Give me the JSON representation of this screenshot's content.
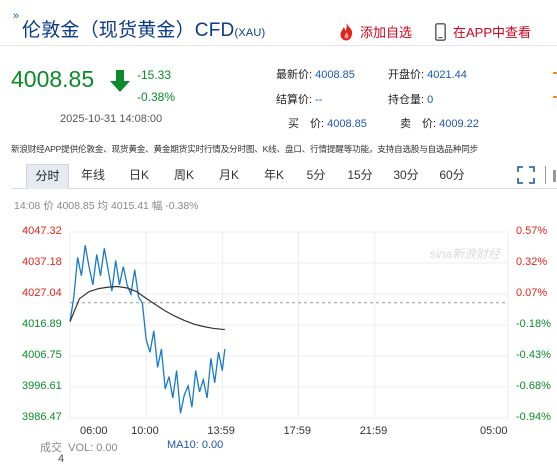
{
  "header": {
    "arrow_mark": "»",
    "title": "伦敦金（现货黄金）CFD",
    "symbol": "(XAU)",
    "add_favorite": "添加自选",
    "open_in_app": "在APP中查看"
  },
  "quote": {
    "price": "4008.85",
    "change": "-15.33",
    "change_pct": "-0.38%",
    "timestamp": "2025-10-31 14:08:00",
    "fields": {
      "latest_label": "最新价:",
      "latest_value": "4008.85",
      "open_label": "开盘价:",
      "open_value": "4021.44",
      "settle_label": "结算价:",
      "settle_value": "--",
      "oi_label": "持仓量:",
      "oi_value": "0",
      "bid_label": "买　价:",
      "bid_value": "4008.85",
      "ask_label": "卖　价:",
      "ask_value": "4009.22"
    }
  },
  "notice": "新浪财经APP提供伦敦金、现货黄金、黄金期货实时行情及分时图、K线、盘口、行情提醒等功能，支持自选股与自选品种同步",
  "tabs": [
    "分时",
    "年线",
    "日K",
    "周K",
    "月K",
    "年K",
    "5分",
    "15分",
    "30分",
    "60分"
  ],
  "active_tab": "分时",
  "info_line": {
    "time": "14:08",
    "price_label": "价",
    "price": "4008.85",
    "avg_label": "均",
    "avg": "4015.41",
    "change_label": "幅",
    "change": "-0.38%"
  },
  "chart_data": {
    "type": "line",
    "y_left_ticks": [
      "4047.32",
      "4037.18",
      "4027.04",
      "4016.89",
      "4006.75",
      "3996.61",
      "3986.47"
    ],
    "y_right_ticks": [
      "0.57%",
      "0.32%",
      "0.07%",
      "-0.18%",
      "-0.43%",
      "-0.68%",
      "-0.94%"
    ],
    "ylim": [
      3986.47,
      4047.32
    ],
    "x_ticks": [
      "06:00",
      "10:00",
      "13:59",
      "17:59",
      "21:59",
      "05:00"
    ],
    "prev_close": 4024.18,
    "watermark": "sina新浪财经",
    "series": [
      {
        "x": [
          6.0,
          6.2,
          6.4,
          6.6,
          6.8,
          7.0,
          7.2,
          7.4,
          7.6,
          7.8,
          8.0,
          8.2,
          8.4,
          8.6,
          8.8,
          9.0,
          9.2,
          9.4,
          9.6,
          9.8,
          10.0,
          10.2,
          10.4,
          10.6,
          10.8,
          11.0,
          11.2,
          11.4,
          11.6,
          11.8,
          12.0,
          12.2,
          12.4,
          12.6,
          12.8,
          13.0,
          13.2,
          13.4,
          13.6,
          13.8,
          14.0,
          14.13
        ],
        "y": [
          4018.0,
          4026.0,
          4039.0,
          4033.0,
          4043.0,
          4036.0,
          4030.0,
          4040.0,
          4033.0,
          4042.0,
          4035.0,
          4028.0,
          4038.0,
          4030.0,
          4036.0,
          4030.0,
          4027.0,
          4035.0,
          4026.0,
          4024.0,
          4012.0,
          4008.0,
          4015.0,
          4003.0,
          4009.0,
          3996.0,
          4000.0,
          3993.0,
          4002.0,
          3988.0,
          3994.0,
          3997.0,
          3990.0,
          4002.0,
          3995.0,
          3999.0,
          3993.0,
          4006.0,
          3998.0,
          4008.0,
          4002.0,
          4009.0
        ]
      },
      {
        "x": [
          6.0,
          6.5,
          7.0,
          7.5,
          8.0,
          8.5,
          9.0,
          9.5,
          10.0,
          10.5,
          11.0,
          11.5,
          12.0,
          12.5,
          13.0,
          13.5,
          14.0,
          14.13
        ],
        "y": [
          4018.0,
          4025.5,
          4027.8,
          4028.8,
          4029.3,
          4029.5,
          4029.0,
          4027.8,
          4025.6,
          4023.5,
          4021.5,
          4019.8,
          4018.4,
          4017.2,
          4016.4,
          4015.8,
          4015.5,
          4015.41
        ]
      }
    ],
    "volume_label": "成交",
    "volume_text": "VOL: 0.00",
    "ma10_text": "MA10: 0.00",
    "footer_number": "4"
  },
  "colors": {
    "up": "#e2231a",
    "down": "#0a8a2a",
    "line": "#1a7ac7",
    "avg_line": "#333333",
    "accent": "#1a56b0"
  }
}
